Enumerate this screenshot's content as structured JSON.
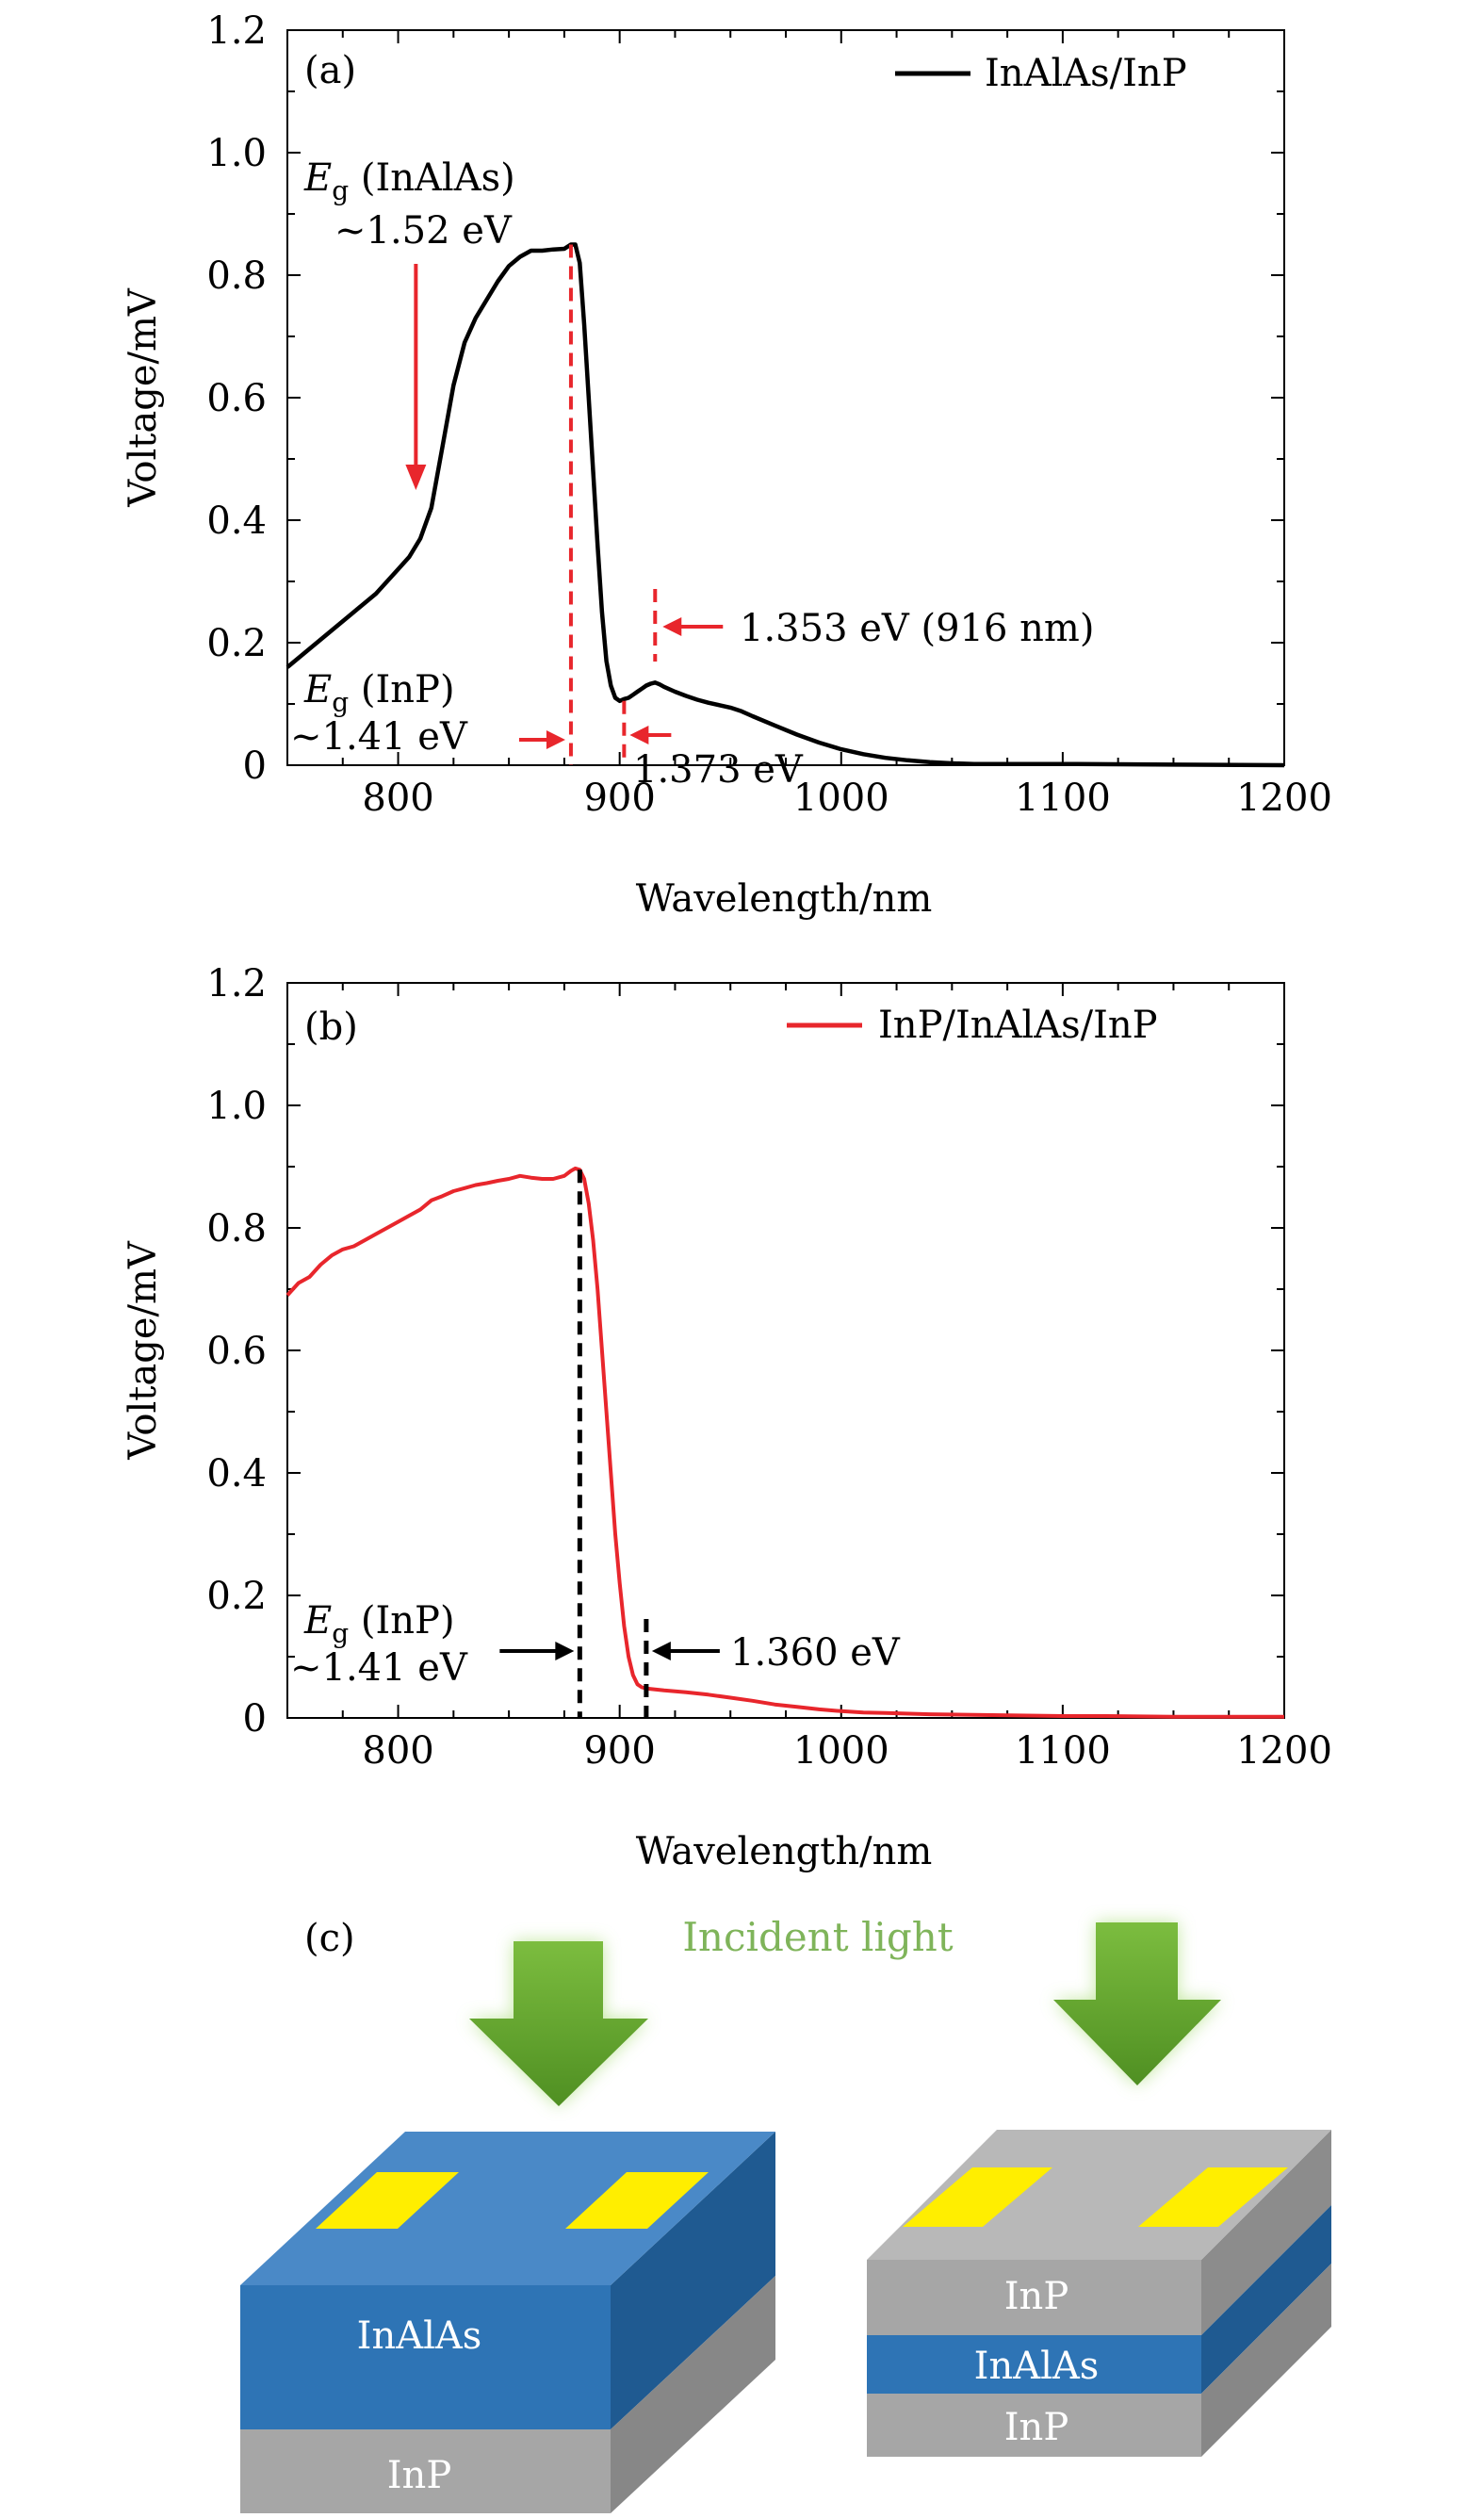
{
  "chart_data": [
    {
      "panel_label": "(a)",
      "type": "line",
      "xlabel": "Wavelength/nm",
      "ylabel": "Voltage/mV",
      "xlim": [
        750,
        1200
      ],
      "ylim": [
        0,
        1.2
      ],
      "xticks": [
        "800",
        "900",
        "1000",
        "1100",
        "1200"
      ],
      "yticks": [
        "0",
        "0.2",
        "0.4",
        "0.6",
        "0.8",
        "1.0",
        "1.2"
      ],
      "legend": "InAlAs/InP",
      "series_color": "#000000",
      "annotation_color": "#e8262c",
      "x": [
        750,
        760,
        770,
        780,
        790,
        800,
        805,
        810,
        815,
        820,
        825,
        830,
        835,
        840,
        845,
        850,
        855,
        860,
        865,
        870,
        875,
        878,
        880,
        882,
        884,
        886,
        888,
        890,
        892,
        894,
        896,
        898,
        900,
        902,
        904,
        906,
        908,
        910,
        912,
        914,
        916,
        918,
        920,
        925,
        930,
        935,
        940,
        945,
        950,
        955,
        960,
        970,
        980,
        990,
        1000,
        1010,
        1020,
        1030,
        1040,
        1050,
        1060,
        1080,
        1100,
        1150,
        1200
      ],
      "values": [
        0.16,
        0.19,
        0.22,
        0.25,
        0.28,
        0.32,
        0.34,
        0.37,
        0.42,
        0.52,
        0.62,
        0.69,
        0.73,
        0.76,
        0.79,
        0.815,
        0.83,
        0.84,
        0.84,
        0.842,
        0.843,
        0.85,
        0.85,
        0.82,
        0.72,
        0.6,
        0.48,
        0.36,
        0.25,
        0.17,
        0.13,
        0.11,
        0.105,
        0.108,
        0.11,
        0.115,
        0.12,
        0.125,
        0.13,
        0.133,
        0.135,
        0.132,
        0.128,
        0.12,
        0.113,
        0.107,
        0.102,
        0.098,
        0.094,
        0.088,
        0.08,
        0.065,
        0.05,
        0.037,
        0.026,
        0.018,
        0.012,
        0.008,
        0.005,
        0.003,
        0.002,
        0.002,
        0.002,
        0.001,
        0.0
      ],
      "annotations": {
        "eg_inalas_symbol": "E",
        "eg_inalas_sub": "g",
        "eg_inalas_name": " (InAlAs)",
        "eg_inalas_value": "~1.52 eV",
        "eg_inp_symbol": "E",
        "eg_inp_sub": "g",
        "eg_inp_name": " (InP)",
        "eg_inp_value": "~1.41 eV",
        "mark_1373": "1.373 eV",
        "mark_1353": "1.353 eV (916 nm)"
      },
      "markers": {
        "inalas_arrow_x": 808,
        "inp_line_x": 878,
        "line_1373_x": 902,
        "line_1353_x": 916
      }
    },
    {
      "panel_label": "(b)",
      "type": "line",
      "xlabel": "Wavelength/nm",
      "ylabel": "Voltage/mV",
      "xlim": [
        750,
        1200
      ],
      "ylim": [
        0,
        1.2
      ],
      "xticks": [
        "800",
        "900",
        "1000",
        "1100",
        "1200"
      ],
      "yticks": [
        "0",
        "0.2",
        "0.4",
        "0.6",
        "0.8",
        "1.0",
        "1.2"
      ],
      "legend": "InP/InAlAs/InP",
      "series_color": "#e8262c",
      "annotation_color": "#000000",
      "x": [
        750,
        755,
        760,
        765,
        770,
        775,
        780,
        785,
        790,
        795,
        800,
        805,
        810,
        815,
        820,
        825,
        830,
        835,
        840,
        845,
        850,
        855,
        860,
        865,
        870,
        875,
        878,
        880,
        882,
        884,
        886,
        888,
        890,
        892,
        894,
        896,
        898,
        900,
        902,
        904,
        906,
        908,
        910,
        912,
        915,
        920,
        930,
        940,
        950,
        960,
        970,
        980,
        990,
        1000,
        1010,
        1020,
        1040,
        1060,
        1080,
        1100,
        1120,
        1150,
        1200
      ],
      "values": [
        0.69,
        0.71,
        0.72,
        0.74,
        0.755,
        0.765,
        0.77,
        0.78,
        0.79,
        0.8,
        0.81,
        0.82,
        0.83,
        0.845,
        0.852,
        0.86,
        0.865,
        0.87,
        0.873,
        0.877,
        0.88,
        0.885,
        0.882,
        0.88,
        0.88,
        0.885,
        0.893,
        0.897,
        0.895,
        0.88,
        0.84,
        0.78,
        0.7,
        0.6,
        0.5,
        0.4,
        0.3,
        0.22,
        0.15,
        0.1,
        0.07,
        0.055,
        0.05,
        0.048,
        0.047,
        0.045,
        0.042,
        0.038,
        0.033,
        0.028,
        0.022,
        0.018,
        0.014,
        0.011,
        0.009,
        0.008,
        0.006,
        0.005,
        0.004,
        0.003,
        0.003,
        0.002,
        0.002
      ],
      "annotations": {
        "eg_inp_symbol": "E",
        "eg_inp_sub": "g",
        "eg_inp_name": " (InP)",
        "eg_inp_value": "~1.41 eV",
        "mark_1360": "1.360 eV"
      },
      "markers": {
        "inp_line_x": 882,
        "line_1360_x": 912
      }
    }
  ],
  "panel_c": {
    "label": "(c)",
    "incident_light": "Incident light",
    "left_device": {
      "top_layer": "InAlAs",
      "bottom_layer": "InP"
    },
    "right_device": {
      "top_layer": "InP",
      "middle_layer": "InAlAs",
      "bottom_layer": "InP"
    },
    "colors": {
      "arrow": "#6aaa35",
      "incident_text": "#7fb45a",
      "inalas": "#2e74b5",
      "inp": "#a6a6a6",
      "contact": "#ffee00"
    }
  }
}
